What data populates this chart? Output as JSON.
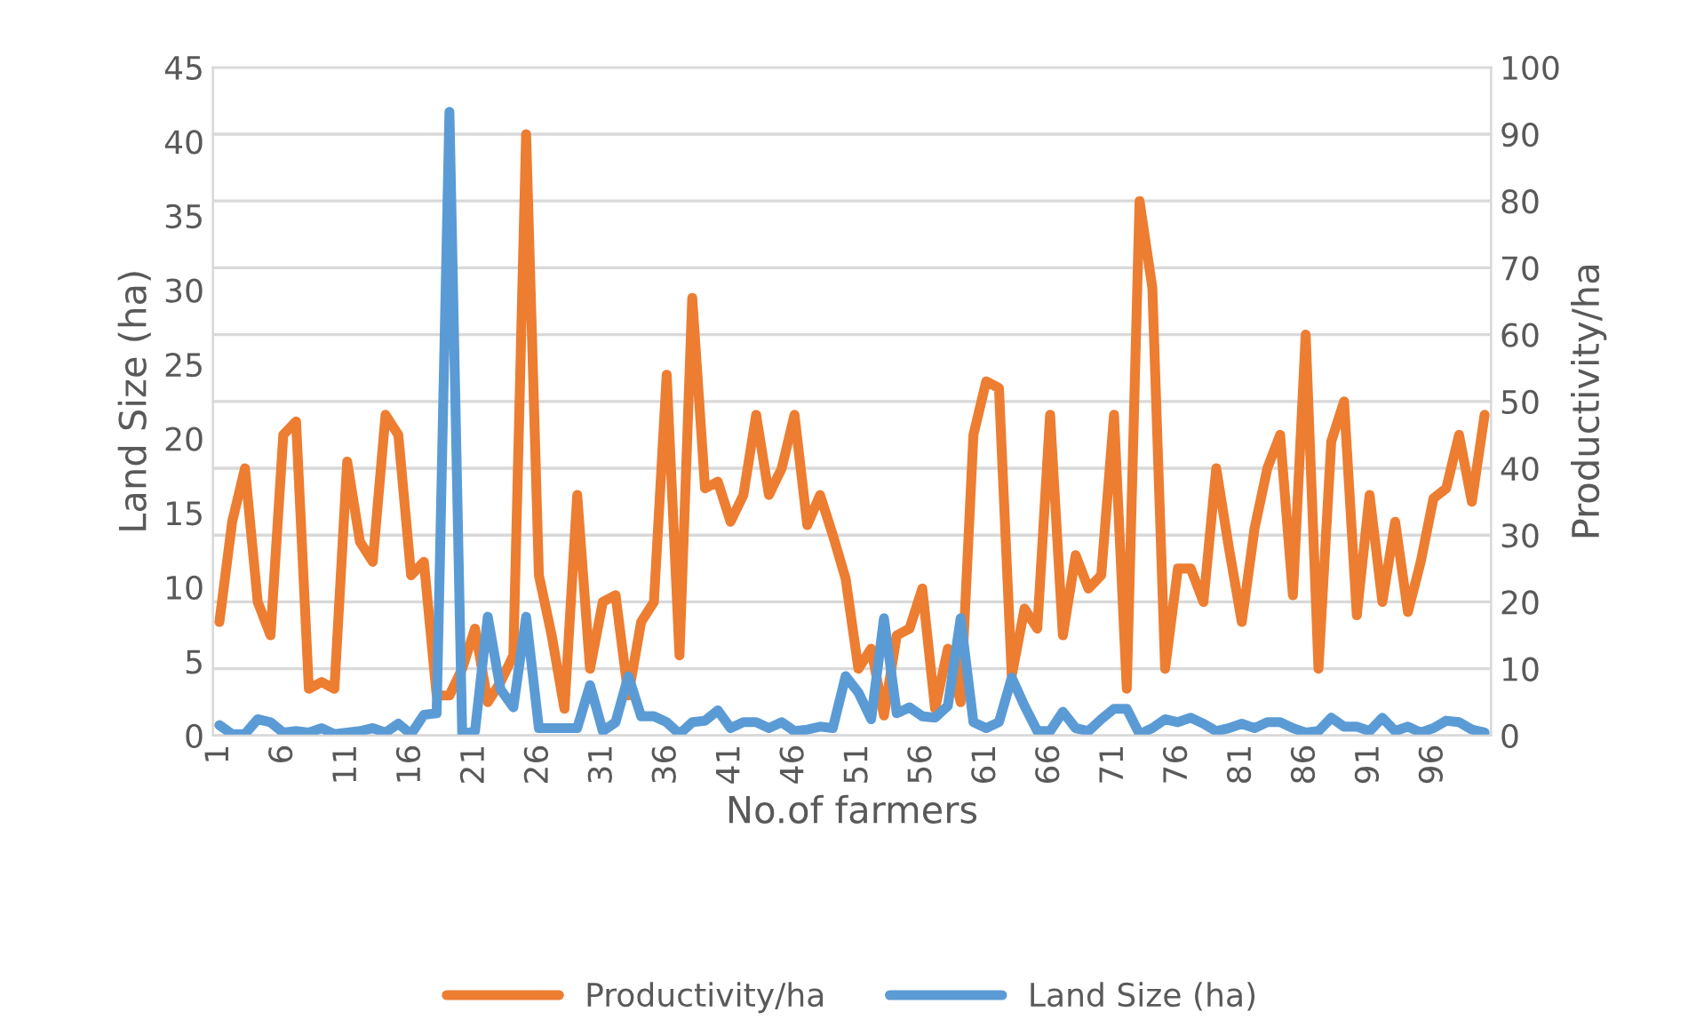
{
  "chart_data": {
    "type": "line",
    "xlabel": "No.of farmers",
    "ylabel": "Land Size (ha)",
    "y2label": "Productivity/ha",
    "categories": [
      "1",
      null,
      null,
      null,
      null,
      "6",
      null,
      null,
      null,
      null,
      "11",
      null,
      null,
      null,
      null,
      "16",
      null,
      null,
      null,
      null,
      "21",
      null,
      null,
      null,
      null,
      "26",
      null,
      null,
      null,
      null,
      "31",
      null,
      null,
      null,
      null,
      "36",
      null,
      null,
      null,
      null,
      "41",
      null,
      null,
      null,
      null,
      "46",
      null,
      null,
      null,
      null,
      "51",
      null,
      null,
      null,
      null,
      "56",
      null,
      null,
      null,
      null,
      "61",
      null,
      null,
      null,
      null,
      "66",
      null,
      null,
      null,
      null,
      "71",
      null,
      null,
      null,
      null,
      "76",
      null,
      null,
      null,
      null,
      "81",
      null,
      null,
      null,
      null,
      "86",
      null,
      null,
      null,
      null,
      "91",
      null,
      null,
      null,
      null,
      "96",
      null,
      null,
      null,
      null
    ],
    "series": [
      {
        "name": "Productivity/ha",
        "color": "#ed7d31",
        "axis": "y2",
        "values": [
          17,
          32,
          40,
          20,
          15,
          45,
          47,
          7,
          8,
          7,
          41,
          29,
          26,
          48,
          45,
          24,
          26,
          6,
          6,
          10,
          16,
          5,
          8,
          12,
          90,
          24,
          15,
          4,
          36,
          10,
          20,
          21,
          6,
          17,
          20,
          54,
          12,
          65.5,
          37,
          38,
          32,
          36,
          48,
          36,
          40,
          48,
          31.5,
          36,
          30,
          23.5,
          10,
          13,
          3,
          15,
          16,
          22,
          4,
          13,
          5,
          45,
          53,
          52,
          9,
          19,
          16,
          48,
          15,
          27,
          22,
          24,
          48,
          7,
          80,
          67,
          10,
          25,
          25,
          20,
          40,
          28,
          17,
          31,
          40,
          45,
          21,
          60,
          10,
          44,
          50,
          18,
          36,
          20,
          32,
          18.5,
          26,
          35.5,
          37,
          45,
          35,
          48
        ]
      },
      {
        "name": "Land Size (ha)",
        "color": "#5b9bd5",
        "axis": "y",
        "values": [
          0.7,
          0.1,
          0.1,
          1.1,
          0.9,
          0.2,
          0.3,
          0.2,
          0.5,
          0.1,
          0.2,
          0.3,
          0.5,
          0.2,
          0.8,
          0.1,
          1.4,
          1.5,
          42,
          0.1,
          0.3,
          8,
          3.1,
          1.9,
          8,
          0.5,
          0.5,
          0.5,
          0.5,
          3.4,
          0.3,
          0.9,
          4,
          1.3,
          1.3,
          0.9,
          0.1,
          0.9,
          1,
          1.7,
          0.5,
          0.9,
          0.9,
          0.5,
          0.9,
          0.3,
          0.4,
          0.6,
          0.5,
          4,
          2.9,
          1.1,
          7.9,
          1.5,
          1.9,
          1.3,
          1.2,
          2,
          7.9,
          0.9,
          0.5,
          0.9,
          3.9,
          2,
          0.3,
          0.3,
          1.6,
          0.5,
          0.3,
          1.1,
          1.8,
          1.8,
          0.1,
          0.5,
          1.1,
          0.9,
          1.2,
          0.8,
          0.3,
          0.5,
          0.8,
          0.5,
          0.9,
          0.9,
          0.5,
          0.2,
          0.3,
          1.2,
          0.6,
          0.6,
          0.3,
          1.2,
          0.3,
          0.6,
          0.2,
          0.5,
          1,
          0.9,
          0.4,
          0.2
        ]
      }
    ],
    "ylim": [
      0,
      45
    ],
    "yticks": [
      0,
      5,
      10,
      15,
      20,
      25,
      30,
      35,
      40,
      45
    ],
    "y2lim": [
      0,
      100
    ],
    "y2ticks": [
      0,
      10,
      20,
      30,
      40,
      50,
      60,
      70,
      80,
      90,
      100
    ],
    "grid": "y2",
    "legend": "bottom",
    "line_style": "solid",
    "marker": "none"
  }
}
